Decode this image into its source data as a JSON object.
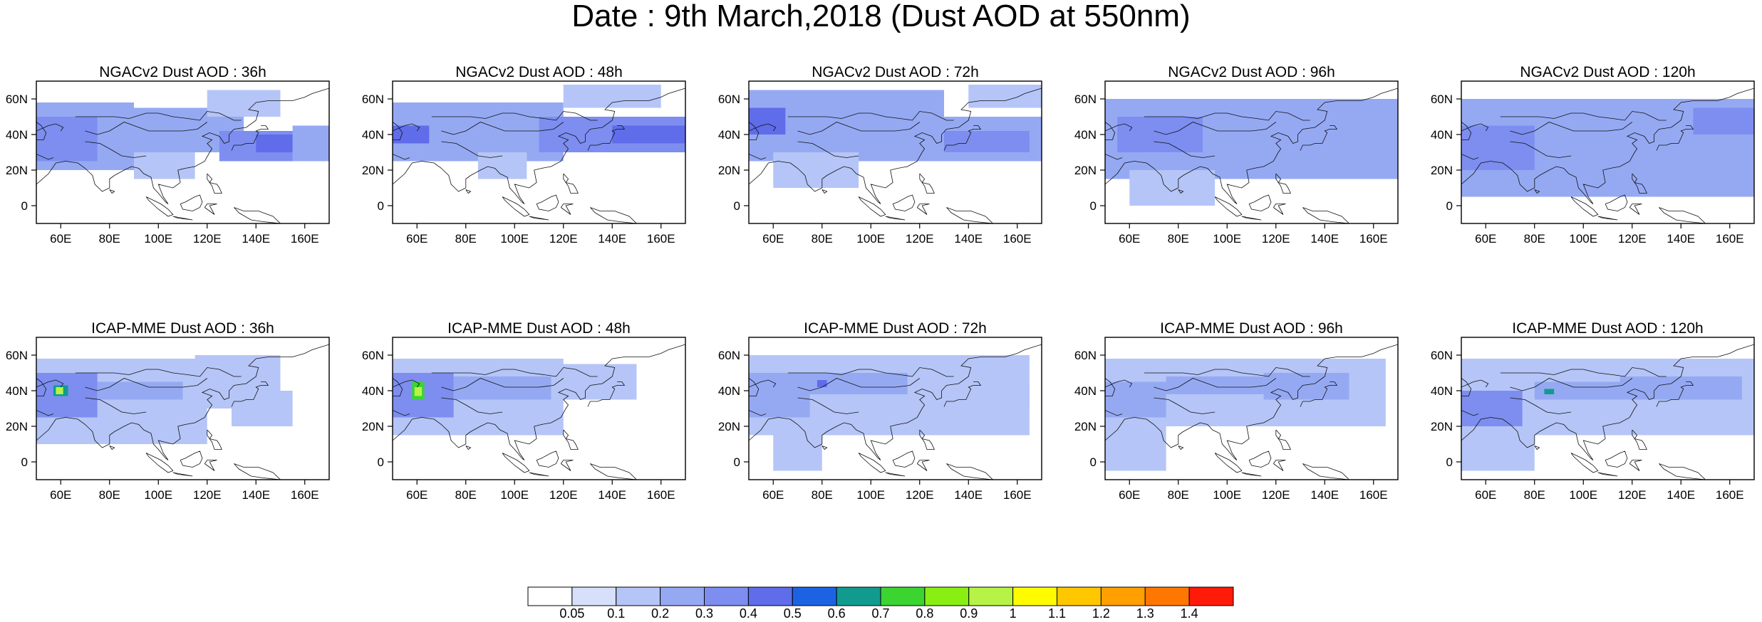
{
  "title": "Date : 9th March,2018 (Dust AOD at 550nm)",
  "map_extent": {
    "lon_min": 50,
    "lon_max": 170,
    "lat_min": -10,
    "lat_max": 70
  },
  "lon_ticks": [
    "60E",
    "80E",
    "100E",
    "120E",
    "140E",
    "160E"
  ],
  "lat_ticks": [
    "60N",
    "40N",
    "20N",
    "0"
  ],
  "panels": [
    {
      "title": "NGACv2 Dust AOD : 36h",
      "model": "NGACv2",
      "lead": "36h",
      "features": [
        [
          50,
          20,
          90,
          58,
          0.25
        ],
        [
          50,
          25,
          75,
          50,
          0.35
        ],
        [
          90,
          30,
          135,
          55,
          0.2
        ],
        [
          125,
          25,
          165,
          42,
          0.35
        ],
        [
          140,
          30,
          160,
          40,
          0.45
        ],
        [
          90,
          15,
          115,
          30,
          0.12
        ],
        [
          120,
          50,
          150,
          65,
          0.15
        ],
        [
          155,
          25,
          170,
          45,
          0.2
        ]
      ]
    },
    {
      "title": "NGACv2 Dust AOD : 48h",
      "model": "NGACv2",
      "lead": "48h",
      "features": [
        [
          50,
          25,
          120,
          58,
          0.25
        ],
        [
          50,
          35,
          65,
          45,
          0.45
        ],
        [
          110,
          30,
          170,
          50,
          0.3
        ],
        [
          140,
          35,
          170,
          45,
          0.4
        ],
        [
          85,
          15,
          105,
          30,
          0.12
        ],
        [
          120,
          55,
          160,
          68,
          0.15
        ]
      ]
    },
    {
      "title": "NGACv2 Dust AOD : 72h",
      "model": "NGACv2",
      "lead": "72h",
      "features": [
        [
          50,
          25,
          130,
          65,
          0.25
        ],
        [
          50,
          40,
          65,
          55,
          0.4
        ],
        [
          100,
          25,
          170,
          50,
          0.2
        ],
        [
          60,
          10,
          95,
          30,
          0.12
        ],
        [
          130,
          30,
          165,
          42,
          0.3
        ],
        [
          140,
          55,
          170,
          68,
          0.15
        ]
      ]
    },
    {
      "title": "NGACv2 Dust AOD : 96h",
      "model": "NGACv2",
      "lead": "96h",
      "features": [
        [
          50,
          15,
          170,
          60,
          0.2
        ],
        [
          55,
          30,
          90,
          50,
          0.3
        ],
        [
          90,
          40,
          130,
          55,
          0.25
        ],
        [
          130,
          25,
          170,
          45,
          0.25
        ],
        [
          60,
          0,
          95,
          20,
          0.12
        ]
      ]
    },
    {
      "title": "NGACv2 Dust AOD : 120h",
      "model": "NGACv2",
      "lead": "120h",
      "features": [
        [
          50,
          5,
          170,
          60,
          0.2
        ],
        [
          50,
          20,
          80,
          45,
          0.3
        ],
        [
          85,
          35,
          130,
          50,
          0.25
        ],
        [
          130,
          30,
          170,
          50,
          0.25
        ],
        [
          145,
          40,
          170,
          55,
          0.3
        ]
      ]
    },
    {
      "title": "ICAP-MME Dust AOD : 36h",
      "model": "ICAP-MME",
      "lead": "36h",
      "features": [
        [
          50,
          10,
          120,
          58,
          0.15
        ],
        [
          50,
          25,
          75,
          50,
          0.3
        ],
        [
          75,
          35,
          110,
          45,
          0.25
        ],
        [
          115,
          30,
          150,
          60,
          0.12
        ],
        [
          57,
          37,
          63,
          43,
          0.65
        ],
        [
          58,
          38,
          61,
          42,
          0.9
        ],
        [
          130,
          20,
          155,
          40,
          0.12
        ]
      ]
    },
    {
      "title": "ICAP-MME Dust AOD : 48h",
      "model": "ICAP-MME",
      "lead": "48h",
      "features": [
        [
          50,
          15,
          120,
          58,
          0.15
        ],
        [
          50,
          25,
          75,
          50,
          0.3
        ],
        [
          75,
          35,
          115,
          48,
          0.25
        ],
        [
          115,
          35,
          150,
          55,
          0.15
        ],
        [
          58,
          35,
          63,
          45,
          0.7
        ],
        [
          59,
          37,
          62,
          42,
          0.95
        ]
      ]
    },
    {
      "title": "ICAP-MME Dust AOD : 72h",
      "model": "ICAP-MME",
      "lead": "72h",
      "features": [
        [
          50,
          15,
          165,
          60,
          0.12
        ],
        [
          50,
          25,
          75,
          50,
          0.25
        ],
        [
          70,
          38,
          115,
          50,
          0.25
        ],
        [
          78,
          42,
          82,
          46,
          0.45
        ],
        [
          120,
          30,
          165,
          45,
          0.15
        ],
        [
          60,
          -5,
          80,
          20,
          0.1
        ]
      ]
    },
    {
      "title": "ICAP-MME Dust AOD : 96h",
      "model": "ICAP-MME",
      "lead": "96h",
      "features": [
        [
          50,
          20,
          165,
          58,
          0.12
        ],
        [
          50,
          25,
          75,
          45,
          0.25
        ],
        [
          75,
          38,
          115,
          48,
          0.25
        ],
        [
          115,
          35,
          150,
          50,
          0.2
        ],
        [
          50,
          -5,
          75,
          20,
          0.1
        ]
      ]
    },
    {
      "title": "ICAP-MME Dust AOD : 120h",
      "model": "ICAP-MME",
      "lead": "120h",
      "features": [
        [
          50,
          15,
          170,
          58,
          0.12
        ],
        [
          50,
          20,
          75,
          40,
          0.3
        ],
        [
          80,
          35,
          120,
          45,
          0.25
        ],
        [
          115,
          35,
          165,
          48,
          0.2
        ],
        [
          84,
          38,
          88,
          41,
          0.6
        ],
        [
          50,
          -5,
          80,
          15,
          0.1
        ]
      ]
    }
  ],
  "colorbar": {
    "levels": [
      "0.05",
      "0.1",
      "0.2",
      "0.3",
      "0.4",
      "0.5",
      "0.6",
      "0.7",
      "0.8",
      "0.9",
      "1",
      "1.1",
      "1.2",
      "1.3",
      "1.4"
    ],
    "thresholds": [
      0.05,
      0.1,
      0.2,
      0.3,
      0.4,
      0.5,
      0.6,
      0.7,
      0.8,
      0.9,
      1,
      1.1,
      1.2,
      1.3,
      1.4
    ],
    "colors": [
      "#ffffff",
      "#d6e0fb",
      "#b5c5f7",
      "#95a9f3",
      "#7d8ef0",
      "#5f6dea",
      "#1c63e4",
      "#119b8f",
      "#3bd431",
      "#89ee12",
      "#b6f346",
      "#fffc00",
      "#ffc700",
      "#ff9f00",
      "#ff7700",
      "#ff1a0a"
    ]
  }
}
